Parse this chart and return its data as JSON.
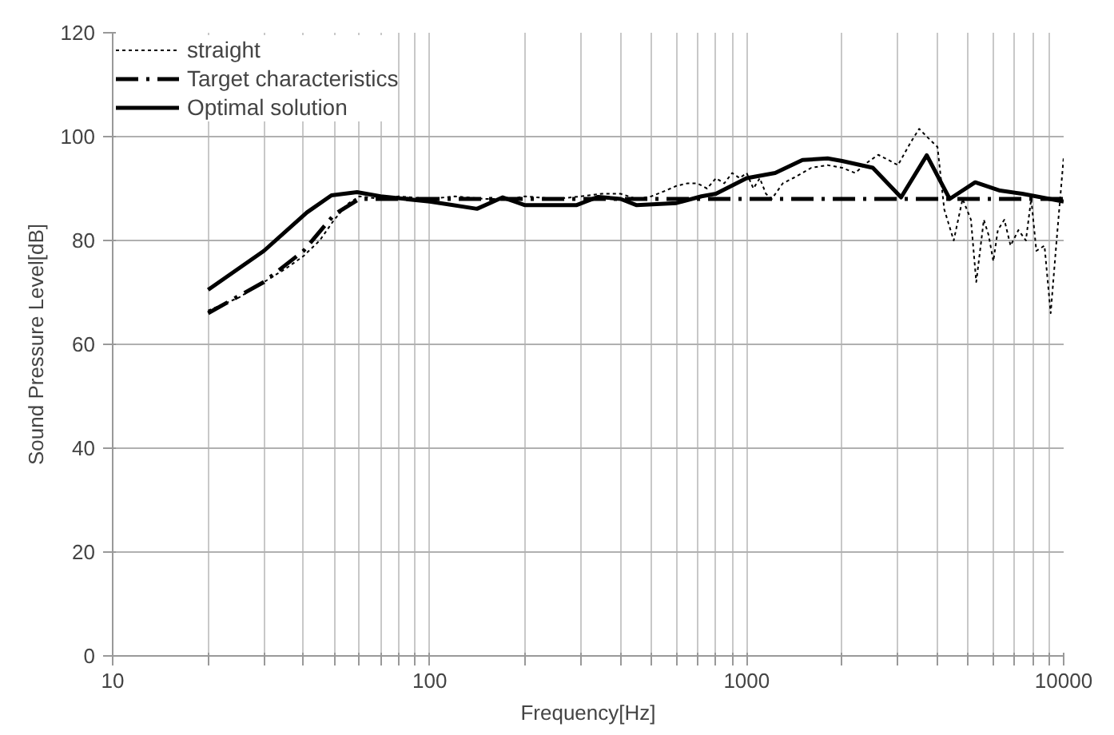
{
  "chart_data": {
    "type": "line",
    "xlabel": "Frequency[Hz]",
    "ylabel": "Sound Pressure Level[dB]",
    "log": "x",
    "xlim": [
      10,
      10000
    ],
    "ylim": [
      0,
      120
    ],
    "xticks": [
      10,
      {
        "value": 20,
        "label": null
      },
      {
        "value": 30,
        "label": null
      },
      {
        "value": 40,
        "label": null
      },
      {
        "value": 50,
        "label": null
      },
      {
        "value": 60,
        "label": null
      },
      {
        "value": 70,
        "label": null
      },
      {
        "value": 80,
        "label": null
      },
      {
        "value": 90,
        "label": null
      },
      100,
      {
        "value": 200,
        "label": null
      },
      {
        "value": 300,
        "label": null
      },
      {
        "value": 400,
        "label": null
      },
      {
        "value": 500,
        "label": null
      },
      {
        "value": 600,
        "label": null
      },
      {
        "value": 700,
        "label": null
      },
      {
        "value": 800,
        "label": null
      },
      {
        "value": 900,
        "label": null
      },
      1000,
      {
        "value": 2000,
        "label": null
      },
      {
        "value": 3000,
        "label": null
      },
      {
        "value": 4000,
        "label": null
      },
      {
        "value": 5000,
        "label": null
      },
      {
        "value": 6000,
        "label": null
      },
      {
        "value": 7000,
        "label": null
      },
      {
        "value": 8000,
        "label": null
      },
      {
        "value": 9000,
        "label": null
      },
      10000
    ],
    "yticks": [
      0,
      20,
      40,
      60,
      80,
      100,
      120
    ],
    "grid": true,
    "legend": "top left",
    "series": [
      {
        "name": "straight",
        "color": "#000000",
        "line_style": "dotted",
        "x": [
          20,
          25,
          30,
          35,
          40,
          45,
          50,
          55,
          60,
          70,
          80,
          100,
          120,
          150,
          180,
          200,
          250,
          300,
          350,
          400,
          450,
          500,
          550,
          600,
          650,
          700,
          750,
          800,
          850,
          900,
          950,
          1000,
          1050,
          1100,
          1150,
          1200,
          1300,
          1400,
          1500,
          1600,
          1800,
          2000,
          2200,
          2400,
          2600,
          2800,
          3000,
          3300,
          3500,
          3700,
          4000,
          4200,
          4500,
          4800,
          5100,
          5300,
          5600,
          5800,
          6000,
          6200,
          6500,
          6800,
          7200,
          7600,
          7900,
          8200,
          8700,
          9100,
          9500,
          10000
        ],
        "values": [
          66.5,
          69,
          72,
          74.5,
          77,
          80,
          84,
          87,
          88.5,
          88,
          88.5,
          88,
          88.5,
          88,
          88,
          88.5,
          88,
          88.5,
          89,
          89,
          88,
          88.5,
          89.5,
          90.5,
          91,
          91,
          90,
          92,
          91,
          93,
          92,
          93,
          90,
          92,
          89,
          88,
          91,
          92,
          93,
          94,
          94.5,
          94,
          93,
          95,
          96.5,
          95.5,
          94.5,
          99,
          101.5,
          100,
          98,
          86,
          80,
          88,
          84,
          72,
          84,
          81,
          76,
          82,
          84,
          79,
          82,
          80,
          88,
          78,
          79,
          66,
          80,
          96
        ]
      },
      {
        "name": "Target characteristics",
        "color": "#000000",
        "line_style": "dashdot",
        "x": [
          20,
          30,
          40,
          50,
          60,
          10000
        ],
        "values": [
          66,
          72,
          78,
          85,
          88,
          88
        ]
      },
      {
        "name": "Optimal solution",
        "color": "#000000",
        "line_style": "solid",
        "x": [
          20,
          30,
          41,
          49,
          59,
          70,
          100,
          141,
          170,
          200,
          290,
          340,
          400,
          450,
          600,
          720,
          800,
          1000,
          1230,
          1500,
          1800,
          2000,
          2500,
          3070,
          3700,
          4370,
          5260,
          6300,
          7400,
          10000
        ],
        "values": [
          70.5,
          78,
          85.4,
          88.7,
          89.3,
          88.5,
          87.5,
          86.1,
          88.3,
          86.8,
          86.8,
          88.4,
          88,
          86.8,
          87.2,
          88.5,
          89,
          92,
          93,
          95.5,
          95.8,
          95.3,
          94,
          88.3,
          96.4,
          88,
          91.2,
          89.6,
          89,
          87.5
        ]
      }
    ]
  }
}
